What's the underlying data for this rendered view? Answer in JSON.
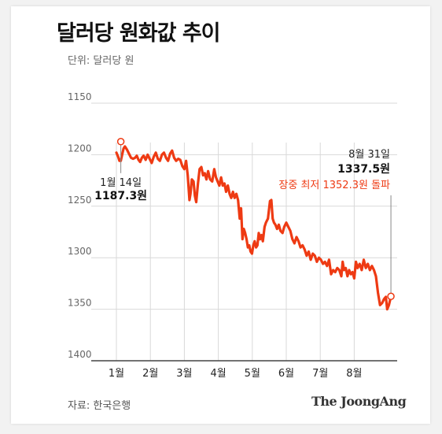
{
  "title": "달러당 원화값 추이",
  "unit_label": "단위: 달러당 원",
  "source_label": "자료: 한국은행",
  "logo_text": "The JoongAng",
  "colors": {
    "line": "#ee3a13",
    "grid": "#d9d9d9",
    "axis": "#444444",
    "text": "#222222"
  },
  "chart_data": {
    "type": "line",
    "title": "달러당 원화값 추이",
    "xlabel": "",
    "ylabel": "",
    "y_inverted": true,
    "ylim": [
      1150,
      1400
    ],
    "yticks": [
      "1150",
      "1200",
      "1250",
      "1300",
      "1350",
      "1400"
    ],
    "yticks_values": [
      1150,
      1200,
      1250,
      1300,
      1350,
      1400
    ],
    "xticks": [
      "1월",
      "2월",
      "3월",
      "4월",
      "5월",
      "6월",
      "7월",
      "8월"
    ],
    "xticks_values": [
      0,
      1,
      2,
      3,
      4,
      5,
      6,
      7
    ],
    "grid": true,
    "series": [
      {
        "values": [
          [
            0.0,
            1198
          ],
          [
            0.05,
            1202
          ],
          [
            0.09,
            1206
          ],
          [
            0.13,
            1206
          ],
          [
            0.17,
            1200
          ],
          [
            0.21,
            1194
          ],
          [
            0.25,
            1192
          ],
          [
            0.31,
            1195
          ],
          [
            0.37,
            1199
          ],
          [
            0.43,
            1203
          ],
          [
            0.49,
            1204
          ],
          [
            0.55,
            1203
          ],
          [
            0.6,
            1201
          ],
          [
            0.65,
            1205
          ],
          [
            0.7,
            1207
          ],
          [
            0.75,
            1203
          ],
          [
            0.8,
            1201
          ],
          [
            0.86,
            1205
          ],
          [
            0.92,
            1200
          ],
          [
            0.98,
            1204
          ],
          [
            1.04,
            1208
          ],
          [
            1.1,
            1202
          ],
          [
            1.16,
            1198
          ],
          [
            1.22,
            1204
          ],
          [
            1.28,
            1206
          ],
          [
            1.34,
            1200
          ],
          [
            1.4,
            1198
          ],
          [
            1.46,
            1203
          ],
          [
            1.52,
            1206
          ],
          [
            1.58,
            1199
          ],
          [
            1.64,
            1196
          ],
          [
            1.7,
            1203
          ],
          [
            1.76,
            1206
          ],
          [
            1.82,
            1204
          ],
          [
            1.88,
            1205
          ],
          [
            1.94,
            1211
          ],
          [
            2.0,
            1214
          ],
          [
            2.05,
            1206
          ],
          [
            2.1,
            1220
          ],
          [
            2.15,
            1244
          ],
          [
            2.18,
            1238
          ],
          [
            2.22,
            1224
          ],
          [
            2.27,
            1226
          ],
          [
            2.31,
            1240
          ],
          [
            2.35,
            1246
          ],
          [
            2.4,
            1228
          ],
          [
            2.45,
            1214
          ],
          [
            2.5,
            1212
          ],
          [
            2.55,
            1220
          ],
          [
            2.6,
            1218
          ],
          [
            2.65,
            1224
          ],
          [
            2.7,
            1216
          ],
          [
            2.76,
            1224
          ],
          [
            2.82,
            1226
          ],
          [
            2.88,
            1214
          ],
          [
            2.93,
            1222
          ],
          [
            2.98,
            1226
          ],
          [
            3.03,
            1230
          ],
          [
            3.08,
            1222
          ],
          [
            3.13,
            1230
          ],
          [
            3.18,
            1228
          ],
          [
            3.23,
            1236
          ],
          [
            3.28,
            1230
          ],
          [
            3.33,
            1238
          ],
          [
            3.38,
            1242
          ],
          [
            3.43,
            1236
          ],
          [
            3.48,
            1242
          ],
          [
            3.53,
            1238
          ],
          [
            3.58,
            1244
          ],
          [
            3.63,
            1262
          ],
          [
            3.67,
            1252
          ],
          [
            3.71,
            1282
          ],
          [
            3.75,
            1272
          ],
          [
            3.79,
            1276
          ],
          [
            3.83,
            1282
          ],
          [
            3.87,
            1290
          ],
          [
            3.91,
            1288
          ],
          [
            3.95,
            1294
          ],
          [
            3.99,
            1296
          ],
          [
            4.03,
            1288
          ],
          [
            4.07,
            1284
          ],
          [
            4.11,
            1290
          ],
          [
            4.15,
            1288
          ],
          [
            4.19,
            1276
          ],
          [
            4.23,
            1282
          ],
          [
            4.27,
            1278
          ],
          [
            4.31,
            1284
          ],
          [
            4.36,
            1270
          ],
          [
            4.4,
            1266
          ],
          [
            4.46,
            1262
          ],
          [
            4.52,
            1245
          ],
          [
            4.56,
            1244
          ],
          [
            4.6,
            1262
          ],
          [
            4.64,
            1266
          ],
          [
            4.68,
            1268
          ],
          [
            4.73,
            1272
          ],
          [
            4.78,
            1268
          ],
          [
            4.83,
            1274
          ],
          [
            4.89,
            1276
          ],
          [
            4.94,
            1270
          ],
          [
            5.0,
            1266
          ],
          [
            5.06,
            1270
          ],
          [
            5.12,
            1274
          ],
          [
            5.18,
            1282
          ],
          [
            5.24,
            1286
          ],
          [
            5.3,
            1280
          ],
          [
            5.36,
            1284
          ],
          [
            5.42,
            1290
          ],
          [
            5.48,
            1288
          ],
          [
            5.54,
            1292
          ],
          [
            5.6,
            1298
          ],
          [
            5.66,
            1294
          ],
          [
            5.72,
            1302
          ],
          [
            5.78,
            1296
          ],
          [
            5.84,
            1298
          ],
          [
            5.9,
            1304
          ],
          [
            5.96,
            1300
          ],
          [
            6.02,
            1302
          ],
          [
            6.08,
            1306
          ],
          [
            6.14,
            1304
          ],
          [
            6.2,
            1308
          ],
          [
            6.26,
            1302
          ],
          [
            6.32,
            1316
          ],
          [
            6.38,
            1312
          ],
          [
            6.44,
            1314
          ],
          [
            6.5,
            1310
          ],
          [
            6.56,
            1312
          ],
          [
            6.62,
            1318
          ],
          [
            6.66,
            1304
          ],
          [
            6.7,
            1312
          ],
          [
            6.75,
            1310
          ],
          [
            6.8,
            1318
          ],
          [
            6.85,
            1312
          ],
          [
            6.9,
            1316
          ],
          [
            6.95,
            1314
          ],
          [
            7.0,
            1320
          ],
          [
            7.05,
            1304
          ],
          [
            7.1,
            1310
          ],
          [
            7.16,
            1306
          ],
          [
            7.22,
            1312
          ],
          [
            7.28,
            1302
          ],
          [
            7.34,
            1310
          ],
          [
            7.4,
            1306
          ],
          [
            7.46,
            1312
          ],
          [
            7.52,
            1308
          ],
          [
            7.58,
            1312
          ],
          [
            7.64,
            1318
          ],
          [
            7.7,
            1334
          ],
          [
            7.76,
            1346
          ],
          [
            7.82,
            1344
          ],
          [
            7.88,
            1340
          ],
          [
            7.93,
            1338
          ],
          [
            7.97,
            1350
          ],
          [
            8.02,
            1346
          ],
          [
            8.08,
            1337.5
          ]
        ]
      }
    ],
    "annotations": [
      {
        "x": 0.13,
        "y": 1187.3,
        "date": "1월 14일",
        "value": "1187.3원"
      },
      {
        "x": 8.08,
        "y": 1337.5,
        "date": "8월 31일",
        "value": "1337.5원",
        "note": "장중 최저 1352.3원 돌파"
      }
    ]
  }
}
